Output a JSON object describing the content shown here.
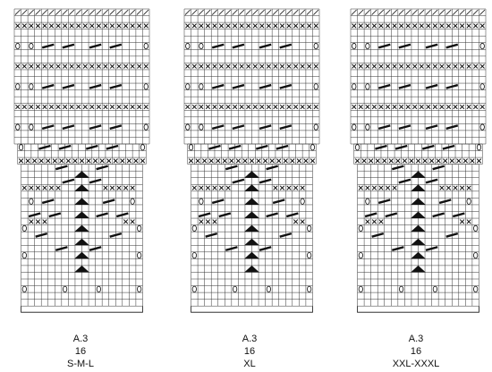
{
  "charts": [
    {
      "name": "A.3",
      "stitches": "16",
      "size": "S-M-L"
    },
    {
      "name": "A.3",
      "stitches": "16",
      "size": "XL"
    },
    {
      "name": "A.3",
      "stitches": "16",
      "size": "XXL-XXXL"
    }
  ]
}
